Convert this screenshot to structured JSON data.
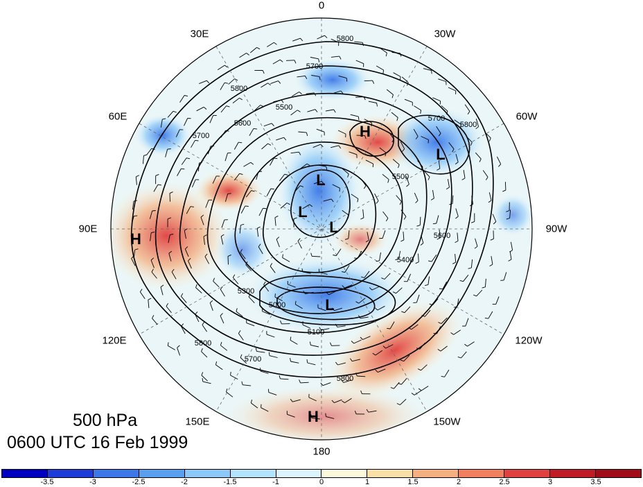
{
  "title": {
    "level": "500 hPa",
    "time": "0600 UTC 16 Feb 1999"
  },
  "longitude_labels": {
    "n0": "0",
    "n30w": "30W",
    "n60w": "60W",
    "n90w": "90W",
    "n120w": "120W",
    "n150w": "150W",
    "n180": "180",
    "n150e": "150E",
    "n120e": "120E",
    "n90e": "90E",
    "n60e": "60E",
    "n30e": "30E"
  },
  "pressure_centers": {
    "h_north": "H",
    "l_northeast": "L",
    "l_center1": "L",
    "l_center2": "L",
    "l_center3": "L",
    "l_south": "L",
    "h_west": "H",
    "h_south": "H"
  },
  "contour_labels": {
    "c5800a": "5800",
    "c5700a": "5700",
    "c5600a": "5600",
    "c5500a": "5500",
    "c5800b": "5800",
    "c5700b": "5700",
    "c5800c": "5800",
    "c5700c": "5700",
    "c5500b": "5500",
    "c5600b": "5600",
    "c5400": "5400",
    "c5000": "5000",
    "c5100": "5100",
    "c5300": "5300",
    "c5700d": "5700",
    "c5800d": "5800",
    "c5800e": "5800"
  },
  "colorbar": {
    "ticks": [
      "-3.5",
      "-3",
      "-2.5",
      "-2",
      "-1.5",
      "-1",
      "0",
      "1",
      "1.5",
      "2",
      "2.5",
      "3",
      "3.5"
    ],
    "colors": [
      "#0000c0",
      "#1e3cd8",
      "#3c78e8",
      "#5aa0f0",
      "#8cc8f8",
      "#b4e4fc",
      "#dcf4fc",
      "#fcf8dc",
      "#f8e0a8",
      "#f4b080",
      "#f08060",
      "#e04040",
      "#c01c28",
      "#a00c18"
    ]
  },
  "colors": {
    "negative": "#5aa0f0",
    "positive": "#f08060"
  }
}
